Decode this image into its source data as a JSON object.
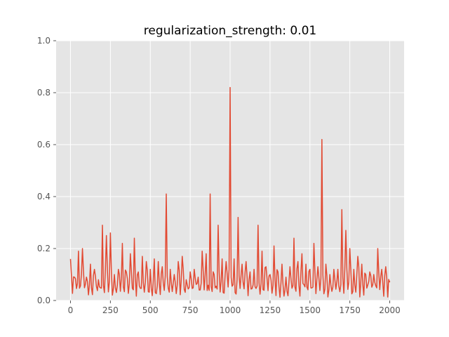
{
  "chart_data": {
    "type": "line",
    "title": "regularization_strength: 0.01",
    "xlabel": "",
    "ylabel": "",
    "xlim": [
      -90,
      2090
    ],
    "ylim": [
      0,
      1.0
    ],
    "grid": true,
    "legend": "none",
    "style": {
      "background": "#e5e5e5",
      "grid_color": "#ffffff",
      "line_color": "#e24a33",
      "tick_color": "#555555"
    },
    "x_ticks": [
      0,
      250,
      500,
      750,
      1000,
      1250,
      1500,
      1750,
      2000
    ],
    "x_tick_labels": [
      "0",
      "250",
      "500",
      "750",
      "1000",
      "1250",
      "1500",
      "1750",
      "2000"
    ],
    "y_ticks": [
      0.0,
      0.2,
      0.4,
      0.6,
      0.8,
      1.0
    ],
    "y_tick_labels": [
      "0.0",
      "0.2",
      "0.4",
      "0.6",
      "0.8",
      "1.0"
    ],
    "series": [
      {
        "x_start": 0,
        "x_end": 2000,
        "x_step": 25,
        "values": [
          0.16,
          0.09,
          0.19,
          0.2,
          0.09,
          0.14,
          0.12,
          0.08,
          0.29,
          0.25,
          0.26,
          0.1,
          0.12,
          0.22,
          0.11,
          0.18,
          0.24,
          0.11,
          0.17,
          0.15,
          0.12,
          0.16,
          0.15,
          0.13,
          0.41,
          0.12,
          0.1,
          0.15,
          0.17,
          0.08,
          0.11,
          0.12,
          0.09,
          0.19,
          0.18,
          0.41,
          0.1,
          0.29,
          0.16,
          0.15,
          0.82,
          0.16,
          0.32,
          0.14,
          0.15,
          0.11,
          0.12,
          0.29,
          0.19,
          0.13,
          0.1,
          0.21,
          0.11,
          0.14,
          0.09,
          0.13,
          0.24,
          0.15,
          0.18,
          0.14,
          0.12,
          0.22,
          0.13,
          0.62,
          0.14,
          0.1,
          0.12,
          0.12,
          0.35,
          0.27,
          0.2,
          0.12,
          0.17,
          0.14,
          0.1,
          0.11,
          0.1,
          0.2,
          0.12,
          0.13,
          0.07
        ]
      }
    ]
  }
}
